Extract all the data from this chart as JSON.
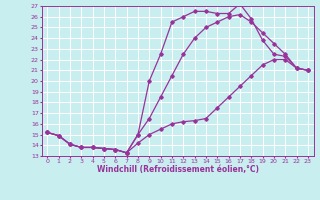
{
  "xlabel": "Windchill (Refroidissement éolien,°C)",
  "xlim": [
    -0.5,
    23.5
  ],
  "ylim": [
    13,
    27
  ],
  "yticks": [
    13,
    14,
    15,
    16,
    17,
    18,
    19,
    20,
    21,
    22,
    23,
    24,
    25,
    26,
    27
  ],
  "xticks": [
    0,
    1,
    2,
    3,
    4,
    5,
    6,
    7,
    8,
    9,
    10,
    11,
    12,
    13,
    14,
    15,
    16,
    17,
    18,
    19,
    20,
    21,
    22,
    23
  ],
  "bg_color": "#c8eef0",
  "grid_color": "#ffffff",
  "line_color": "#993399",
  "marker": "D",
  "marker_size": 1.8,
  "line_width": 0.9,
  "curves": [
    {
      "x": [
        0,
        1,
        2,
        3,
        4,
        5,
        6,
        7,
        8,
        9,
        10,
        11,
        12,
        13,
        14,
        15,
        16,
        17,
        18,
        19,
        20,
        21,
        22,
        23
      ],
      "y": [
        15.2,
        14.9,
        14.1,
        13.8,
        13.8,
        13.7,
        13.6,
        13.3,
        14.2,
        15.0,
        15.5,
        16.0,
        16.2,
        16.3,
        16.5,
        17.5,
        18.5,
        19.5,
        20.5,
        21.5,
        22.0,
        22.0,
        21.2,
        21.0
      ]
    },
    {
      "x": [
        0,
        1,
        2,
        3,
        4,
        5,
        6,
        7,
        8,
        9,
        10,
        11,
        12,
        13,
        14,
        15,
        16,
        17,
        18,
        19,
        20,
        21,
        22,
        23
      ],
      "y": [
        15.2,
        14.9,
        14.1,
        13.8,
        13.8,
        13.7,
        13.6,
        13.3,
        15.0,
        16.5,
        18.5,
        20.5,
        22.5,
        24.0,
        25.0,
        25.5,
        26.0,
        26.2,
        25.5,
        24.5,
        23.5,
        22.5,
        21.2,
        21.0
      ]
    },
    {
      "x": [
        0,
        1,
        2,
        3,
        4,
        5,
        6,
        7,
        8,
        9,
        10,
        11,
        12,
        13,
        14,
        15,
        16,
        17,
        18,
        19,
        20,
        21,
        22,
        23
      ],
      "y": [
        15.2,
        14.9,
        14.1,
        13.8,
        13.8,
        13.7,
        13.6,
        13.3,
        15.0,
        20.0,
        22.5,
        25.5,
        26.0,
        26.5,
        26.5,
        26.3,
        26.3,
        27.2,
        25.8,
        23.8,
        22.5,
        22.3,
        21.2,
        21.0
      ]
    }
  ]
}
